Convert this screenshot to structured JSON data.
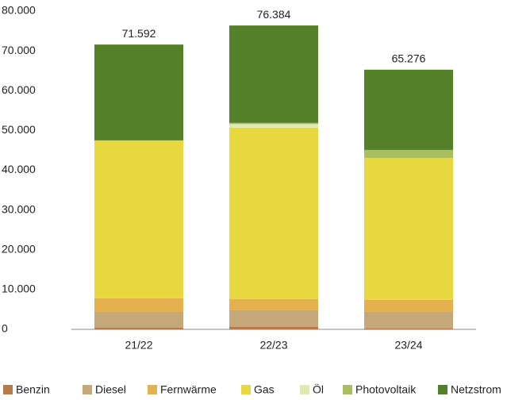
{
  "chart_data": {
    "type": "stacked_bar",
    "categories": [
      "21/22",
      "22/23",
      "23/24"
    ],
    "series": [
      {
        "name": "Benzin",
        "color": "#b87a4a",
        "values": [
          400,
          600,
          200
        ]
      },
      {
        "name": "Diesel",
        "color": "#c4a87a",
        "values": [
          4000,
          4200,
          4200
        ]
      },
      {
        "name": "Fernwärme",
        "color": "#e5b04e",
        "values": [
          3400,
          2800,
          3000
        ]
      },
      {
        "name": "Gas",
        "color": "#e8d840",
        "values": [
          39700,
          43100,
          35700
        ]
      },
      {
        "name": "Öl",
        "color": "#dfeab0",
        "values": [
          0,
          900,
          0
        ]
      },
      {
        "name": "Photovoltaik",
        "color": "#a9be5e",
        "values": [
          0,
          300,
          2000
        ]
      },
      {
        "name": "Netzstrom",
        "color": "#55802a",
        "values": [
          24092,
          24484,
          20176
        ]
      }
    ],
    "totals": {
      "values": [
        71592,
        76384,
        65276
      ],
      "value_labels": [
        "71.592",
        "76.384",
        "65.276"
      ]
    },
    "ylim": [
      0,
      80000
    ],
    "yticks": [
      0,
      {
        "value": 10000,
        "label": "10.000"
      },
      {
        "value": 20000,
        "label": "20.000"
      },
      {
        "value": 30000,
        "label": "30.000"
      },
      {
        "value": 40000,
        "label": "40.000"
      },
      {
        "value": 50000,
        "label": "50.000"
      },
      {
        "value": 60000,
        "label": "60.000"
      },
      {
        "value": 70000,
        "label": "70.000"
      },
      {
        "value": 80000,
        "label": "80.000"
      }
    ],
    "legend": "bottom"
  }
}
